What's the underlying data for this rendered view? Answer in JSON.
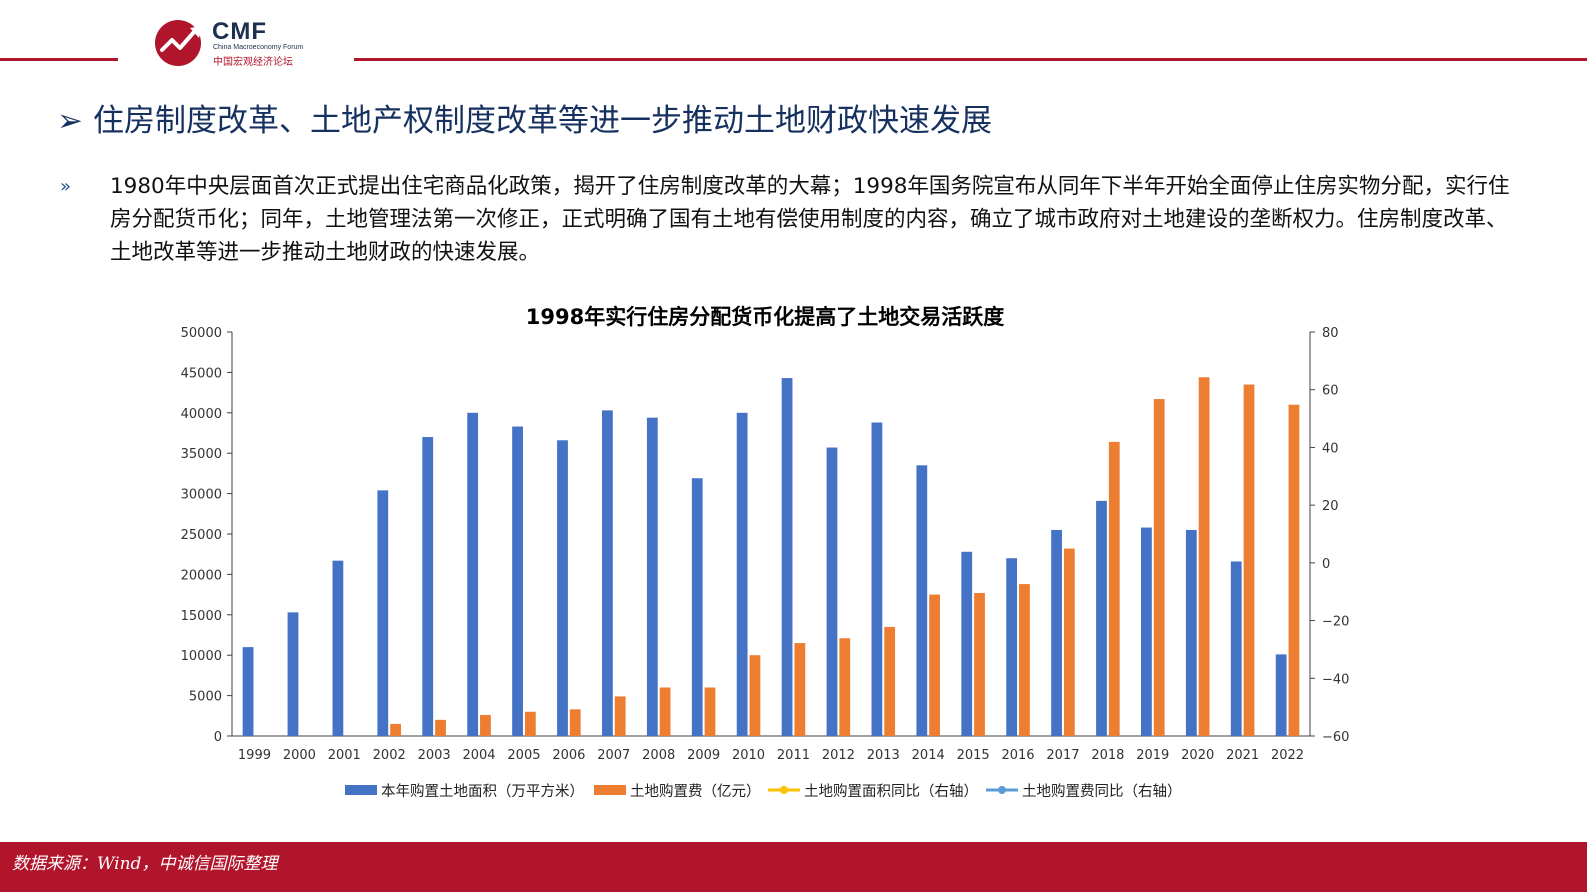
{
  "header": {
    "logo_name": "CMF",
    "logo_en": "China Macroeconomy Forum",
    "logo_cn": "中国宏观经济论坛"
  },
  "slide": {
    "title_arrow": "➢",
    "title": "住房制度改革、土地产权制度改革等进一步推动土地财政快速发展",
    "bullet": "»",
    "body": "1980年中央层面首次正式提出住宅商品化政策，揭开了住房制度改革的大幕；1998年国务院宣布从同年下半年开始全面停止住房实物分配，实行住房分配货币化；同年，土地管理法第一次修正，正式明确了国有土地有偿使用制度的内容，确立了城市政府对土地建设的垄断权力。住房制度改革、土地改革等进一步推动土地财政的快速发展。"
  },
  "chart_data": {
    "type": "bar",
    "title": "1998年实行住房分配货币化提高了土地交易活跃度",
    "categories": [
      "1999",
      "2000",
      "2001",
      "2002",
      "2003",
      "2004",
      "2005",
      "2006",
      "2007",
      "2008",
      "2009",
      "2010",
      "2011",
      "2012",
      "2013",
      "2014",
      "2015",
      "2016",
      "2017",
      "2018",
      "2019",
      "2020",
      "2021",
      "2022"
    ],
    "ylim": [
      0,
      50000
    ],
    "y_ticks": [
      "0",
      "5000",
      "10000",
      "15000",
      "20000",
      "25000",
      "30000",
      "35000",
      "40000",
      "45000",
      "50000"
    ],
    "y2lim": [
      -60,
      80
    ],
    "y2_ticks": [
      "−60",
      "−40",
      "−20",
      "0",
      "20",
      "40",
      "60",
      "80"
    ],
    "y2_tick_values": [
      -60,
      -40,
      -20,
      0,
      20,
      40,
      60,
      80
    ],
    "series": [
      {
        "name": "本年购置土地面积（万平方米）",
        "color": "#4472c4",
        "axis": "left",
        "values": [
          11000,
          15300,
          21700,
          30400,
          37000,
          40000,
          38300,
          36600,
          40300,
          39400,
          31900,
          40000,
          44300,
          35700,
          38800,
          33500,
          22800,
          22000,
          25500,
          29100,
          25800,
          25500,
          21600,
          10100
        ]
      },
      {
        "name": "土地购置费（亿元）",
        "color": "#ed7d31",
        "axis": "left",
        "values": [
          null,
          null,
          null,
          1500,
          2000,
          2600,
          3000,
          3300,
          4900,
          6000,
          6000,
          10000,
          11500,
          12100,
          13500,
          17500,
          17700,
          18800,
          23200,
          36400,
          41700,
          44400,
          43500,
          41000
        ]
      }
    ],
    "legend": [
      {
        "label": "本年购置土地面积（万平方米）",
        "color": "#4472c4",
        "kind": "bar"
      },
      {
        "label": "土地购置费（亿元）",
        "color": "#ed7d31",
        "kind": "bar"
      },
      {
        "label": "土地购置面积同比（右轴）",
        "color": "#ffc000",
        "kind": "line"
      },
      {
        "label": "土地购置费同比（右轴）",
        "color": "#5b9bd5",
        "kind": "line"
      }
    ],
    "legend_position": "bottom",
    "grid": false
  },
  "footer": {
    "source": "数据来源：Wind，中诚信国际整理"
  }
}
